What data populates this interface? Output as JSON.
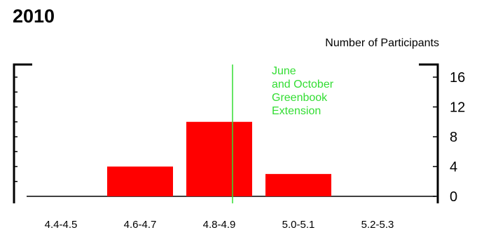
{
  "header": {
    "year": "2010"
  },
  "chart_data": {
    "type": "bar",
    "categories": [
      "4.4-4.5",
      "4.6-4.7",
      "4.8-4.9",
      "5.0-5.1",
      "5.2-5.3"
    ],
    "values": [
      0,
      4,
      10,
      3,
      0
    ],
    "title": "2010",
    "ylabel": "Number of Participants",
    "ylim": [
      0,
      18
    ],
    "yticks": [
      0,
      4,
      8,
      12,
      16
    ],
    "bar_color": "#ff0000",
    "marker": {
      "position": 4.85,
      "color": "#33dd33",
      "label_lines": [
        "June",
        "and October",
        "Greenbook",
        "Extension"
      ]
    },
    "grid": false,
    "y_axis_side": "right"
  }
}
